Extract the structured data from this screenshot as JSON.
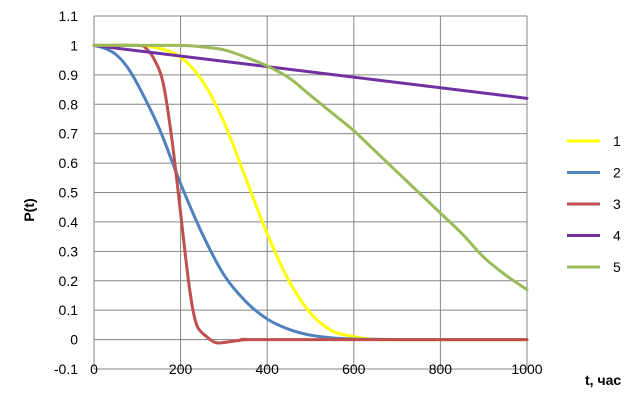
{
  "chart_data": {
    "type": "line",
    "xlabel": "t, час",
    "ylabel": "P(t)",
    "xlim": [
      0,
      1000
    ],
    "ylim": [
      -0.1,
      1.1
    ],
    "x_ticks": [
      "0",
      "200",
      "400",
      "600",
      "800",
      "1000"
    ],
    "y_ticks": [
      "-0.1",
      "0",
      "0.1",
      "0.2",
      "0.3",
      "0.4",
      "0.5",
      "0.6",
      "0.7",
      "0.8",
      "0.9",
      "1",
      "1.1"
    ],
    "grid": true,
    "legend_position": "right",
    "series": [
      {
        "name": "1",
        "color": "#FFFF00",
        "x": [
          0,
          100,
          150,
          200,
          250,
          300,
          350,
          400,
          450,
          500,
          550,
          600,
          650,
          700,
          800,
          1000
        ],
        "y": [
          1.0,
          1.0,
          0.99,
          0.96,
          0.88,
          0.74,
          0.55,
          0.36,
          0.2,
          0.09,
          0.03,
          0.01,
          0.0,
          0.0,
          0.0,
          0.0
        ]
      },
      {
        "name": "2",
        "color": "#4F81BD",
        "x": [
          0,
          25,
          50,
          75,
          100,
          150,
          200,
          250,
          300,
          350,
          400,
          450,
          500,
          550,
          600,
          650,
          700,
          800,
          1000
        ],
        "y": [
          1.0,
          0.99,
          0.97,
          0.93,
          0.87,
          0.72,
          0.53,
          0.36,
          0.22,
          0.13,
          0.07,
          0.035,
          0.015,
          0.006,
          0.002,
          0.001,
          0.0,
          0.0,
          0.0
        ]
      },
      {
        "name": "3",
        "color": "#C0504D",
        "x": [
          0,
          100,
          120,
          140,
          160,
          180,
          200,
          210,
          220,
          230,
          240,
          260,
          280,
          300,
          350,
          400,
          1000
        ],
        "y": [
          1.0,
          1.0,
          0.99,
          0.95,
          0.87,
          0.68,
          0.43,
          0.3,
          0.18,
          0.09,
          0.04,
          0.01,
          -0.01,
          -0.01,
          0.0,
          0.0,
          0.0
        ]
      },
      {
        "name": "4",
        "color": "#7030A0",
        "x": [
          0,
          1000
        ],
        "y": [
          1.0,
          0.82
        ]
      },
      {
        "name": "5",
        "color": "#9BBB59",
        "x": [
          0,
          100,
          200,
          250,
          300,
          350,
          400,
          450,
          500,
          550,
          600,
          650,
          700,
          750,
          800,
          850,
          900,
          950,
          1000
        ],
        "y": [
          1.0,
          1.0,
          1.0,
          0.995,
          0.985,
          0.96,
          0.93,
          0.89,
          0.83,
          0.77,
          0.71,
          0.64,
          0.57,
          0.5,
          0.43,
          0.36,
          0.28,
          0.22,
          0.17
        ]
      }
    ]
  }
}
